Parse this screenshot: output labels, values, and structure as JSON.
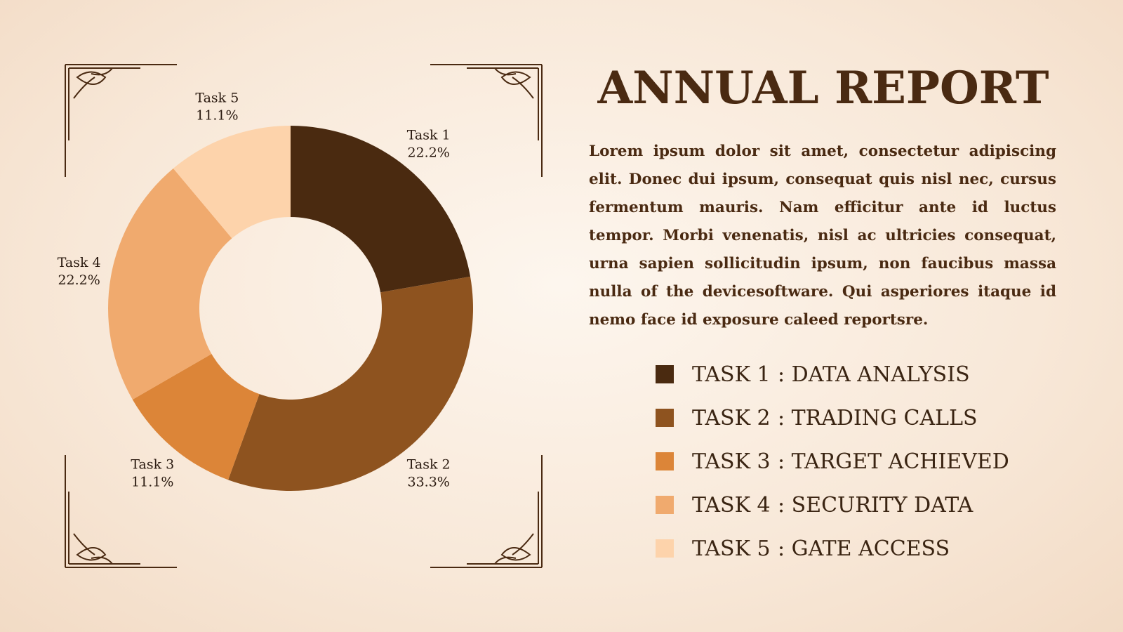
{
  "chart_data": {
    "type": "donut",
    "categories": [
      "Task 1",
      "Task 2",
      "Task 3",
      "Task 4",
      "Task 5"
    ],
    "values": [
      22.2,
      33.3,
      11.1,
      22.2,
      11.1
    ],
    "value_labels": [
      "22.2%",
      "33.3%",
      "11.1%",
      "22.2%",
      "11.1%"
    ],
    "colors": [
      "#4a2a10",
      "#8e531f",
      "#dc8538",
      "#f0aa6e",
      "#fdd3ab"
    ]
  },
  "heading": "ANNUAL REPORT",
  "body": "Lorem ipsum dolor sit amet, consectetur adipiscing elit. Donec dui ipsum, consequat quis nisl nec, cursus fermentum mauris. Nam efficitur ante id luctus tempor. Morbi venenatis, nisl ac ultricies consequat, urna sapien sollicitudin ipsum, non faucibus massa nulla of the devicesoftware. Qui asperiores itaque id nemo face id exposure caleed reportsre.",
  "legend": [
    {
      "label": "TASK 1",
      "text": ": DATA ANALYSIS"
    },
    {
      "label": "TASK 2",
      "text": ": TRADING CALLS"
    },
    {
      "label": "TASK 3",
      "text": ": TARGET ACHIEVED"
    },
    {
      "label": "TASK 4",
      "text": ": SECURITY DATA"
    },
    {
      "label": "TASK 5",
      "text": ": GATE ACCESS"
    }
  ]
}
